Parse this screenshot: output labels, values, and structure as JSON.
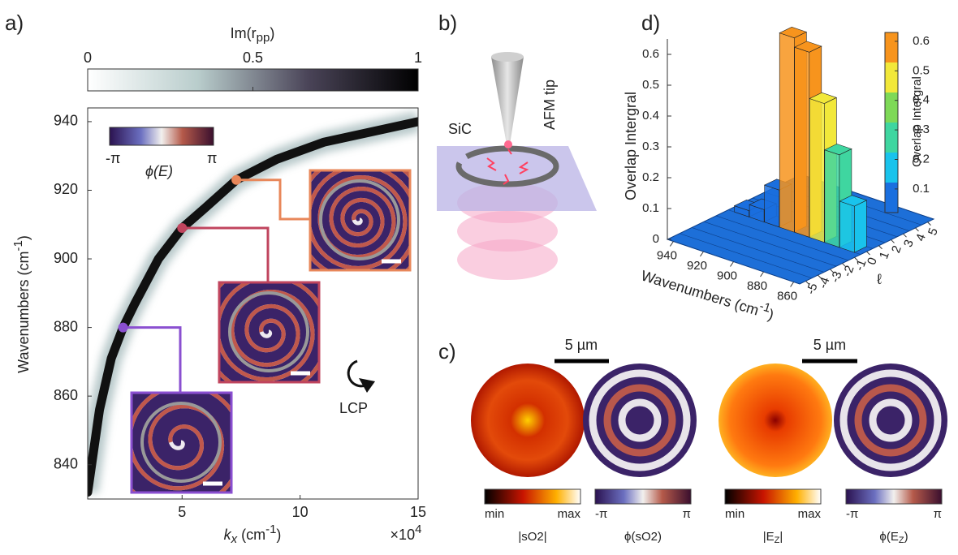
{
  "panels": {
    "a": "a)",
    "b": "b)",
    "c": "c)",
    "d": "d)"
  },
  "panel_b": {
    "material": "SiC",
    "tip": "AFM tip"
  },
  "panel_c": {
    "scale_bars": [
      "5 µm",
      "5 µm"
    ],
    "colorbars": [
      {
        "min": "min",
        "max": "max",
        "label": "|sO2|"
      },
      {
        "min": "-π",
        "max": "π",
        "label": "ϕ(sO2)"
      },
      {
        "min": "min",
        "max": "max",
        "label": [
          "|E",
          "Z",
          "|"
        ]
      },
      {
        "min": "-π",
        "max": "π",
        "label": [
          "ϕ(E",
          "Z",
          ")"
        ]
      }
    ]
  },
  "chart_data": [
    {
      "type": "dispersion",
      "colorbar": {
        "title": [
          "Im(r",
          "pp",
          ")"
        ],
        "lim": [
          0,
          1
        ],
        "ticks": [
          0,
          0.5,
          1
        ],
        "colors": [
          "#ffffff",
          "#b9cdcc",
          "#4a4458",
          "#000000"
        ]
      },
      "phase_colorbar": {
        "min": "-π",
        "max": "π",
        "label": "ϕ(E)"
      },
      "polarization": "LCP",
      "xlabel": [
        "k",
        "x",
        " (cm",
        "-1",
        ")"
      ],
      "x_multiplier": [
        "×10",
        "4"
      ],
      "ylabel": [
        "Wavenumbers (cm",
        "-1",
        ")"
      ],
      "xlim": [
        1,
        15
      ],
      "xticks": [
        5,
        10,
        15
      ],
      "ylim": [
        830,
        944
      ],
      "yticks": [
        840,
        860,
        880,
        900,
        920,
        940
      ],
      "series": [
        {
          "x": [
            1,
            1.5,
            2,
            2.5,
            3,
            4,
            5,
            6,
            7.3,
            9,
            11,
            13,
            15
          ],
          "values": [
            832,
            856,
            871,
            880,
            887,
            900,
            909,
            915,
            923,
            929,
            934,
            937,
            940
          ],
          "color": "#111111"
        }
      ],
      "modes": {
        "x": [
          2.5,
          5,
          7.3
        ],
        "values": [
          880,
          909,
          923
        ],
        "colors": [
          "#8a4fd0",
          "#c0455e",
          "#e8875a"
        ]
      }
    },
    {
      "type": "bar3d",
      "zlabel": "Overlap Intergral",
      "xlabel": [
        "Wavenumbers (cm",
        "-1",
        ")"
      ],
      "ylabel": "ℓ",
      "zlim": [
        0,
        0.65
      ],
      "zticks": [
        0,
        0.1,
        0.2,
        0.3,
        0.4,
        0.5,
        0.6
      ],
      "xlim": [
        944,
        856
      ],
      "xticks": [
        940,
        920,
        900,
        880,
        860
      ],
      "ylim": [
        -5.5,
        5.5
      ],
      "yticks": [
        -5,
        -4,
        -3,
        -2,
        -1,
        0,
        1,
        2,
        3,
        4,
        5
      ],
      "x": [
        935,
        925,
        915,
        905,
        895,
        885,
        875,
        865
      ],
      "y": [
        0,
        0,
        0,
        0,
        0,
        0,
        0,
        0
      ],
      "values": [
        0.02,
        0.04,
        0.12,
        0.63,
        0.6,
        0.45,
        0.3,
        0.15
      ],
      "clim": [
        0.02,
        0.63
      ],
      "colormap": [
        "#1a6fdf",
        "#19c3ec",
        "#3fd6a0",
        "#7ed957",
        "#f2e83a",
        "#f7941d"
      ],
      "cticks": [
        0.1,
        0.2,
        0.3,
        0.4,
        0.5,
        0.6
      ],
      "colorbar_label": "Overlap Intergral",
      "surface_color": "#1d6fd8"
    }
  ]
}
